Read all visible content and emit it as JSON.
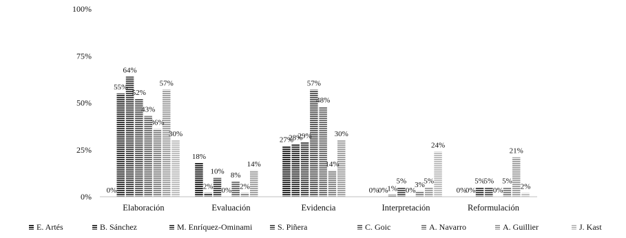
{
  "chart_data": {
    "type": "bar",
    "title": "",
    "xlabel": "",
    "ylabel": "",
    "ylim": [
      0,
      100
    ],
    "yticks": [
      "0%",
      "25%",
      "50%",
      "75%",
      "100%"
    ],
    "categories": [
      "Elaboración",
      "Evaluación",
      "Evidencia",
      "Interpretación",
      "Reformulación"
    ],
    "series": [
      {
        "name": "E. Artés",
        "values": [
          0,
          18,
          27,
          0,
          0
        ],
        "labels": [
          "0%",
          "18%",
          "27%",
          "0%",
          "0%"
        ],
        "color": "#2b2b2b"
      },
      {
        "name": "B. Sánchez",
        "values": [
          55,
          2,
          28,
          0,
          0
        ],
        "labels": [
          "55%",
          "2%",
          "28%",
          "0%",
          "0%"
        ],
        "color": "#3a3a3a"
      },
      {
        "name": "M. Enríquez-Ominami",
        "values": [
          64,
          10,
          29,
          1,
          5
        ],
        "labels": [
          "64%",
          "10%",
          "29%",
          "1%",
          "5%"
        ],
        "color": "#4a4a4a"
      },
      {
        "name": "S. Piñera",
        "values": [
          52,
          0,
          57,
          5,
          5
        ],
        "labels": [
          "52%",
          "0%",
          "57%",
          "5%",
          "5%"
        ],
        "color": "#5c5c5c"
      },
      {
        "name": "C. Goic",
        "values": [
          43,
          8,
          48,
          0,
          0
        ],
        "labels": [
          "43%",
          "8%",
          "48%",
          "0%",
          "0%"
        ],
        "color": "#707070"
      },
      {
        "name": "A. Navarro",
        "values": [
          36,
          2,
          14,
          3,
          5
        ],
        "labels": [
          "36%",
          "2%",
          "14%",
          "3%",
          "5%"
        ],
        "color": "#888888"
      },
      {
        "name": "A. Guillier",
        "values": [
          57,
          14,
          30,
          5,
          21
        ],
        "labels": [
          "57%",
          "14%",
          "30%",
          "5%",
          "21%"
        ],
        "color": "#a2a2a2"
      },
      {
        "name": "J. Kast",
        "values": [
          30,
          0,
          0,
          24,
          2
        ],
        "labels": [
          "30%",
          "",
          "",
          "24%",
          "2%"
        ],
        "color": "#bdbdbd"
      }
    ],
    "grid": false,
    "legend": "bottom"
  }
}
